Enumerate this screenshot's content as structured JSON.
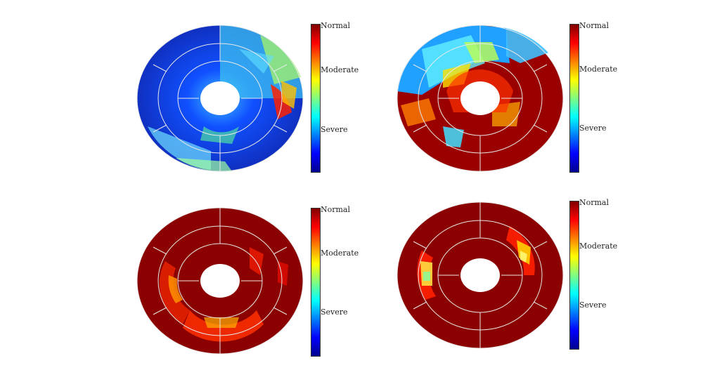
{
  "colorbar": {
    "labels": [
      "Normal",
      "Moderate",
      "Severe"
    ],
    "stops": [
      "#00008f",
      "#0000ff",
      "#0080ff",
      "#00ffff",
      "#80ff80",
      "#ffff00",
      "#ff8000",
      "#ff0000",
      "#800000"
    ]
  },
  "panels": [
    {
      "id": "top-left",
      "dominant": "#1040e0",
      "pattern": "mostly-severe"
    },
    {
      "id": "top-right",
      "dominant": "#9a0000",
      "pattern": "mixed-moderate"
    },
    {
      "id": "bottom-left",
      "dominant": "#8b0000",
      "pattern": "mostly-normal"
    },
    {
      "id": "bottom-right",
      "dominant": "#8b0000",
      "pattern": "mostly-normal"
    }
  ]
}
